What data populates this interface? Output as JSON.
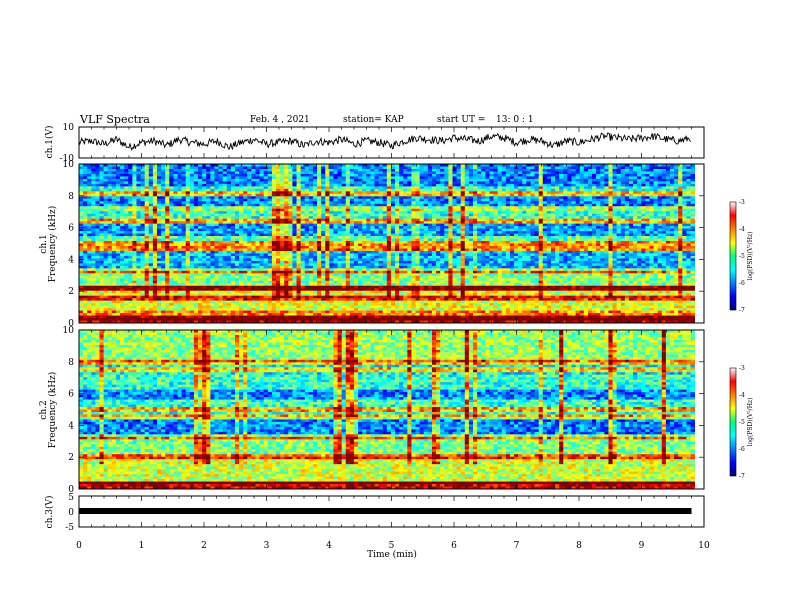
{
  "header": {
    "title": "VLF Spectra",
    "date": "Feb. 4 , 2021",
    "station": "station= KAP",
    "start": "start UT =",
    "start_time": "13: 0 : 1"
  },
  "colors": {
    "spectrum_low": "#0000b4",
    "spectrum_mid": "#00ff7f",
    "spectrum_high": "#ff0000",
    "trace": "#000000"
  },
  "colorscale": "jet",
  "chart_data": [
    {
      "name": "ch1-waveform",
      "type": "line",
      "ylabel": "ch.1(V)",
      "ylim": [
        -10,
        10
      ],
      "yticks": [
        "10",
        "-10"
      ],
      "x": [
        0,
        0.2,
        0.4,
        0.6,
        0.8,
        1.0,
        1.2,
        1.4,
        1.6,
        1.8,
        2.0,
        2.2,
        2.4,
        2.6,
        2.8,
        3.0,
        3.2,
        3.4,
        3.6,
        3.8,
        4.0,
        4.2,
        4.4,
        4.6,
        4.8,
        5.0,
        5.2,
        5.4,
        5.6,
        5.8,
        6.0,
        6.2,
        6.4,
        6.6,
        6.8,
        7.0,
        7.2,
        7.4,
        7.6,
        7.8,
        8.0,
        8.2,
        8.4,
        8.6,
        8.8,
        9.0,
        9.2,
        9.4,
        9.6,
        9.8
      ],
      "y": [
        0,
        1,
        -1,
        2,
        -3,
        0,
        1,
        -2,
        2,
        0,
        -1,
        1,
        -3,
        0,
        2,
        -1,
        0,
        1,
        -2,
        1,
        0,
        2,
        -1,
        1,
        0,
        -2,
        1,
        3,
        2,
        1,
        3,
        2,
        1,
        4,
        3,
        0,
        2,
        1,
        -2,
        1,
        0,
        2,
        4,
        3,
        2,
        3,
        4,
        2,
        1,
        3
      ],
      "xlim": [
        0,
        10
      ]
    },
    {
      "name": "ch1-spectrogram",
      "type": "heatmap",
      "ylabel": "ch.1",
      "ylabel2": "Frequency (kHz)",
      "ylim": [
        0,
        10
      ],
      "yticks": [
        "0",
        "2",
        "4",
        "6",
        "8",
        "10"
      ],
      "xlim": [
        0,
        10
      ],
      "colorbar": {
        "label": "log(PSD)(V²/Hz)",
        "range": [
          -7,
          -3
        ],
        "ticks": [
          "-3",
          "-4",
          "-5",
          "-6",
          "-7"
        ]
      },
      "bands_khz": [
        {
          "f_low": 0.0,
          "f_high": 0.3,
          "level": -3.2
        },
        {
          "f_low": 0.3,
          "f_high": 0.8,
          "level": -4.0
        },
        {
          "f_low": 0.8,
          "f_high": 2.0,
          "level": -4.6
        },
        {
          "f_low": 2.0,
          "f_high": 2.4,
          "level": -4.0
        },
        {
          "f_low": 2.4,
          "f_high": 3.5,
          "level": -5.0
        },
        {
          "f_low": 3.5,
          "f_high": 4.6,
          "level": -5.8
        },
        {
          "f_low": 4.6,
          "f_high": 5.5,
          "level": -5.2
        },
        {
          "f_low": 5.5,
          "f_high": 6.2,
          "level": -5.9
        },
        {
          "f_low": 6.2,
          "f_high": 7.0,
          "level": -5.3
        },
        {
          "f_low": 7.0,
          "f_high": 8.0,
          "level": -6.0
        },
        {
          "f_low": 8.0,
          "f_high": 8.6,
          "level": -5.4
        },
        {
          "f_low": 8.6,
          "f_high": 10.0,
          "level": -6.0
        }
      ],
      "lines_khz": [
        0.3,
        1.6,
        2.2,
        3.2,
        4.7,
        5.0,
        6.4,
        7.2,
        8.1
      ]
    },
    {
      "name": "ch2-spectrogram",
      "type": "heatmap",
      "ylabel": "ch.2",
      "ylabel2": "Frequency (kHz)",
      "ylim": [
        0,
        10
      ],
      "yticks": [
        "0",
        "2",
        "4",
        "6",
        "8",
        "10"
      ],
      "xlim": [
        0,
        10
      ],
      "colorbar": {
        "label": "log(PSD)(V²/Hz)",
        "range": [
          -7,
          -3
        ],
        "ticks": [
          "-3",
          "-4",
          "-5",
          "-6",
          "-7"
        ]
      },
      "bands_khz": [
        {
          "f_low": 0.0,
          "f_high": 0.4,
          "level": -3.3
        },
        {
          "f_low": 0.4,
          "f_high": 2.0,
          "level": -4.7
        },
        {
          "f_low": 2.0,
          "f_high": 3.5,
          "level": -5.0
        },
        {
          "f_low": 3.5,
          "f_high": 4.6,
          "level": -6.0
        },
        {
          "f_low": 4.6,
          "f_high": 5.6,
          "level": -5.3
        },
        {
          "f_low": 5.6,
          "f_high": 6.3,
          "level": -6.0
        },
        {
          "f_low": 6.3,
          "f_high": 7.2,
          "level": -5.3
        },
        {
          "f_low": 7.2,
          "f_high": 8.0,
          "level": -5.5
        },
        {
          "f_low": 8.0,
          "f_high": 10.0,
          "level": -4.9
        }
      ],
      "lines_khz": [
        0.4,
        2.0,
        3.2,
        4.5,
        5.0,
        7.5,
        8.0
      ]
    },
    {
      "name": "ch3-waveform",
      "type": "line",
      "ylabel": "ch.3(V)",
      "ylim": [
        -5,
        5
      ],
      "yticks": [
        "5",
        "0",
        "-5"
      ],
      "xlim": [
        0,
        10
      ],
      "x": [
        0,
        9.8
      ],
      "y": [
        0,
        0
      ]
    }
  ],
  "x_axis": {
    "label": "Time (min)",
    "ticks": [
      "0",
      "1",
      "2",
      "3",
      "4",
      "5",
      "6",
      "7",
      "8",
      "9",
      "10"
    ]
  }
}
